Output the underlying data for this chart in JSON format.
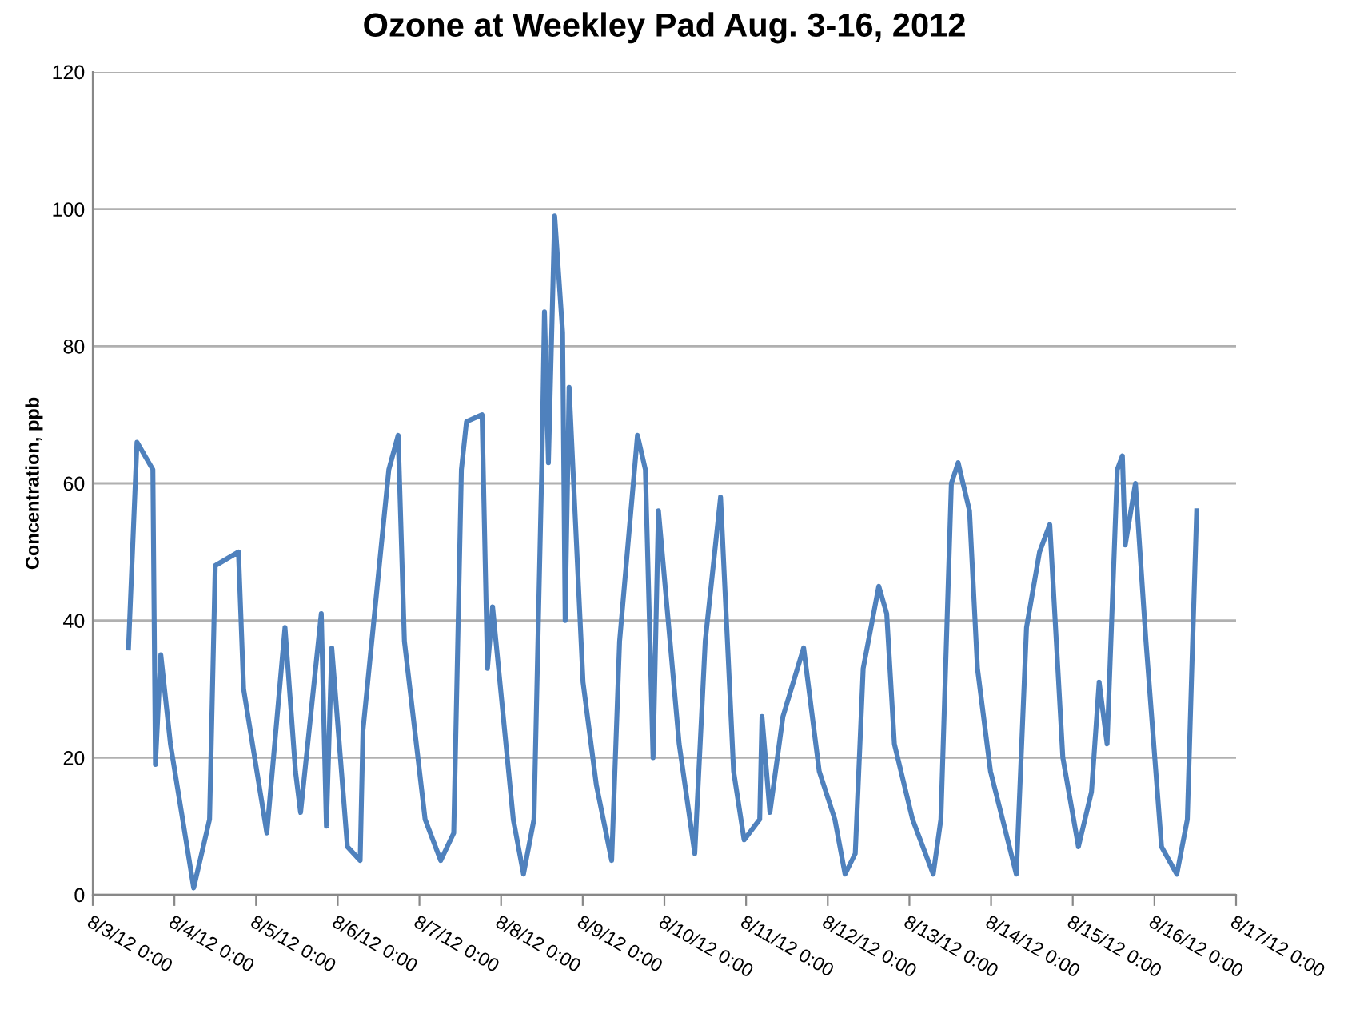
{
  "chart_data": {
    "type": "line",
    "title": "Ozone at Weekley Pad Aug. 3-16, 2012",
    "ylabel": "Concentration, ppb",
    "x": [
      "2012-08-03T10:30",
      "2012-08-03T13:00",
      "2012-08-03T17:40",
      "2012-08-03T18:25",
      "2012-08-03T20:00",
      "2012-08-03T22:50",
      "2012-08-04T05:40",
      "2012-08-04T10:20",
      "2012-08-04T12:00",
      "2012-08-04T18:50",
      "2012-08-04T20:20",
      "2012-08-05T03:10",
      "2012-08-05T08:30",
      "2012-08-05T11:35",
      "2012-08-05T13:05",
      "2012-08-05T19:10",
      "2012-08-05T20:40",
      "2012-08-05T22:15",
      "2012-08-06T02:50",
      "2012-08-06T06:35",
      "2012-08-06T07:25",
      "2012-08-06T15:00",
      "2012-08-06T17:45",
      "2012-08-06T19:35",
      "2012-08-07T01:40",
      "2012-08-07T06:15",
      "2012-08-07T10:05",
      "2012-08-07T12:20",
      "2012-08-07T13:50",
      "2012-08-07T18:25",
      "2012-08-07T20:00",
      "2012-08-07T21:30",
      "2012-08-08T03:35",
      "2012-08-08T06:35",
      "2012-08-08T09:40",
      "2012-08-08T12:00",
      "2012-08-08T12:45",
      "2012-08-08T13:55",
      "2012-08-08T15:45",
      "2012-08-08T18:05",
      "2012-08-08T18:50",
      "2012-08-08T20:00",
      "2012-08-09T00:05",
      "2012-08-09T04:00",
      "2012-08-09T08:30",
      "2012-08-09T10:50",
      "2012-08-09T16:05",
      "2012-08-09T18:25",
      "2012-08-09T20:40",
      "2012-08-09T22:15",
      "2012-08-10T04:20",
      "2012-08-10T08:55",
      "2012-08-10T12:00",
      "2012-08-10T16:30",
      "2012-08-10T20:20",
      "2012-08-10T23:25",
      "2012-08-11T04:00",
      "2012-08-11T04:40",
      "2012-08-11T07:00",
      "2012-08-11T10:50",
      "2012-08-11T16:55",
      "2012-08-11T21:30",
      "2012-08-12T02:05",
      "2012-08-12T05:05",
      "2012-08-12T08:05",
      "2012-08-12T10:25",
      "2012-08-12T15:00",
      "2012-08-12T17:20",
      "2012-08-12T19:35",
      "2012-08-13T00:55",
      "2012-08-13T07:00",
      "2012-08-13T09:15",
      "2012-08-13T12:20",
      "2012-08-13T14:20",
      "2012-08-13T17:40",
      "2012-08-13T20:00",
      "2012-08-13T23:50",
      "2012-08-14T07:25",
      "2012-08-14T10:25",
      "2012-08-14T14:15",
      "2012-08-14T17:15",
      "2012-08-14T21:05",
      "2012-08-15T01:40",
      "2012-08-15T05:30",
      "2012-08-15T07:45",
      "2012-08-15T10:05",
      "2012-08-15T13:05",
      "2012-08-15T14:35",
      "2012-08-15T15:25",
      "2012-08-15T18:25",
      "2012-08-15T21:30",
      "2012-08-16T02:05",
      "2012-08-16T06:35",
      "2012-08-16T09:40",
      "2012-08-16T11:10",
      "2012-08-16T12:25"
    ],
    "series": [
      {
        "color": "#4f81bd",
        "values": [
          36,
          66,
          62,
          19,
          35,
          22,
          1,
          11,
          48,
          50,
          30,
          9,
          39,
          18,
          12,
          41,
          10,
          36,
          7,
          5,
          24,
          62,
          67,
          37,
          11,
          5,
          9,
          62,
          69,
          70,
          33,
          42,
          11,
          3,
          11,
          63,
          85,
          63,
          99,
          82,
          40,
          74,
          31,
          16,
          5,
          37,
          67,
          62,
          20,
          56,
          22,
          6,
          37,
          58,
          18,
          8,
          11,
          26,
          12,
          26,
          36,
          18,
          11,
          3,
          6,
          33,
          45,
          41,
          22,
          11,
          3,
          11,
          60,
          63,
          56,
          33,
          18,
          3,
          39,
          50,
          54,
          20,
          7,
          15,
          31,
          22,
          62,
          64,
          51,
          60,
          37,
          7,
          3,
          11,
          36,
          56
        ]
      }
    ],
    "xlim": [
      "2012-08-03",
      "2012-08-17"
    ],
    "xticks": [
      {
        "value": "2012-08-03",
        "label": "8/3/12 0:00"
      },
      {
        "value": "2012-08-04",
        "label": "8/4/12 0:00"
      },
      {
        "value": "2012-08-05",
        "label": "8/5/12 0:00"
      },
      {
        "value": "2012-08-06",
        "label": "8/6/12 0:00"
      },
      {
        "value": "2012-08-07",
        "label": "8/7/12 0:00"
      },
      {
        "value": "2012-08-08",
        "label": "8/8/12 0:00"
      },
      {
        "value": "2012-08-09",
        "label": "8/9/12 0:00"
      },
      {
        "value": "2012-08-10",
        "label": "8/10/12 0:00"
      },
      {
        "value": "2012-08-11",
        "label": "8/11/12 0:00"
      },
      {
        "value": "2012-08-12",
        "label": "8/12/12 0:00"
      },
      {
        "value": "2012-08-13",
        "label": "8/13/12 0:00"
      },
      {
        "value": "2012-08-14",
        "label": "8/14/12 0:00"
      },
      {
        "value": "2012-08-15",
        "label": "8/15/12 0:00"
      },
      {
        "value": "2012-08-16",
        "label": "8/16/12 0:00"
      },
      {
        "value": "2012-08-17",
        "label": "8/17/12 0:00"
      }
    ],
    "ylim": [
      0,
      120
    ],
    "yticks": [
      0,
      20,
      40,
      60,
      80,
      100,
      120
    ],
    "grid": "y",
    "legend": false
  }
}
